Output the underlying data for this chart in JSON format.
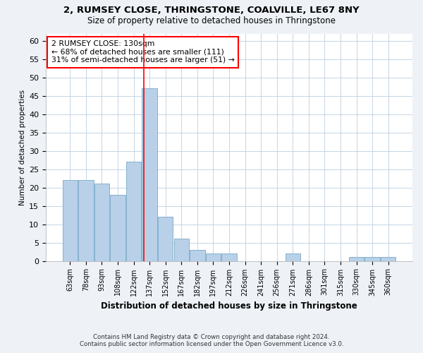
{
  "title_line1": "2, RUMSEY CLOSE, THRINGSTONE, COALVILLE, LE67 8NY",
  "title_line2": "Size of property relative to detached houses in Thringstone",
  "xlabel": "Distribution of detached houses by size in Thringstone",
  "ylabel": "Number of detached properties",
  "categories": [
    "63sqm",
    "78sqm",
    "93sqm",
    "108sqm",
    "122sqm",
    "137sqm",
    "152sqm",
    "167sqm",
    "182sqm",
    "197sqm",
    "212sqm",
    "226sqm",
    "241sqm",
    "256sqm",
    "271sqm",
    "286sqm",
    "301sqm",
    "315sqm",
    "330sqm",
    "345sqm",
    "360sqm"
  ],
  "values": [
    22,
    22,
    21,
    18,
    27,
    47,
    12,
    6,
    3,
    2,
    2,
    0,
    0,
    0,
    2,
    0,
    0,
    0,
    1,
    1,
    1
  ],
  "bar_color": "#b8d0e8",
  "bar_edge_color": "#7aaac8",
  "red_line_x": 4.62,
  "annotation_text_line1": "2 RUMSEY CLOSE: 130sqm",
  "annotation_text_line2": "← 68% of detached houses are smaller (111)",
  "annotation_text_line3": "31% of semi-detached houses are larger (51) →",
  "annotation_box_color": "white",
  "annotation_box_edge_color": "red",
  "ylim": [
    0,
    62
  ],
  "yticks": [
    0,
    5,
    10,
    15,
    20,
    25,
    30,
    35,
    40,
    45,
    50,
    55,
    60
  ],
  "footer_line1": "Contains HM Land Registry data © Crown copyright and database right 2024.",
  "footer_line2": "Contains public sector information licensed under the Open Government Licence v3.0.",
  "background_color": "#eef2f7",
  "plot_bg_color": "#ffffff",
  "grid_color": "#c5d5e5"
}
